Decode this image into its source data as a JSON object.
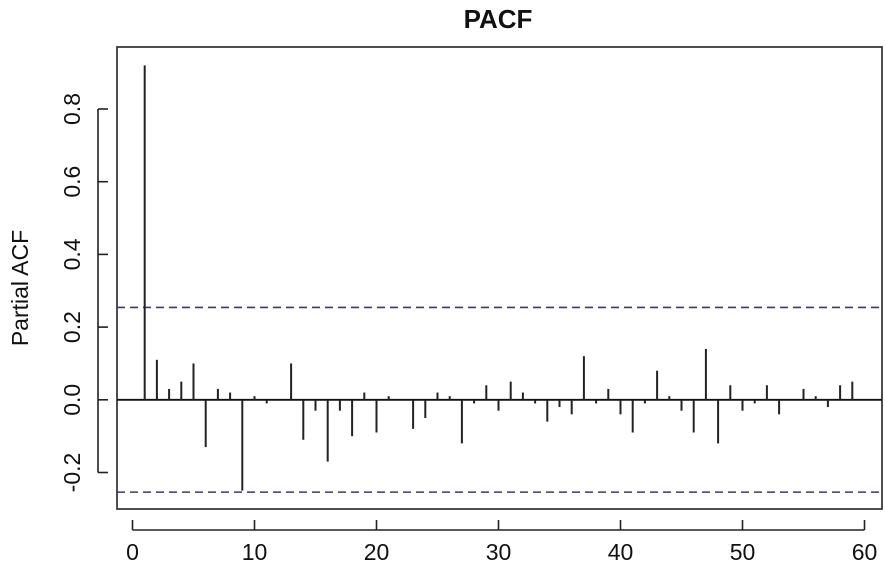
{
  "chart_data": {
    "type": "bar",
    "title": "PACF",
    "xlabel": "",
    "ylabel": "Partial ACF",
    "xlim": [
      -1,
      61
    ],
    "ylim": [
      -0.3,
      0.95
    ],
    "x_ticks": [
      0,
      10,
      20,
      30,
      40,
      50,
      60
    ],
    "x_tick_labels": [
      "0",
      "10",
      "20",
      "30",
      "40",
      "50",
      "60"
    ],
    "y_ticks": [
      -0.2,
      0.0,
      0.2,
      0.4,
      0.6,
      0.8
    ],
    "y_tick_labels": [
      "-0.2",
      "0.0",
      "0.2",
      "0.4",
      "0.6",
      "0.8"
    ],
    "confidence_bound": 0.254,
    "grid": false,
    "colors": {
      "bars": "#222222",
      "confidence_lines": "#3a3a70",
      "zero_line": "#111111"
    },
    "lags": [
      1,
      2,
      3,
      4,
      5,
      6,
      7,
      8,
      9,
      10,
      11,
      12,
      13,
      14,
      15,
      16,
      17,
      18,
      19,
      20,
      21,
      22,
      23,
      24,
      25,
      26,
      27,
      28,
      29,
      30,
      31,
      32,
      33,
      34,
      35,
      36,
      37,
      38,
      39,
      40,
      41,
      42,
      43,
      44,
      45,
      46,
      47,
      48,
      49,
      50,
      51,
      52,
      53,
      54,
      55,
      56,
      57,
      58,
      59
    ],
    "values": [
      0.92,
      0.11,
      0.03,
      0.05,
      0.1,
      -0.13,
      0.03,
      0.02,
      -0.25,
      0.01,
      -0.01,
      0.0,
      0.1,
      -0.11,
      -0.03,
      -0.17,
      -0.03,
      -0.1,
      0.02,
      -0.09,
      0.01,
      0.0,
      -0.08,
      -0.05,
      0.02,
      0.01,
      -0.12,
      -0.01,
      0.04,
      -0.03,
      0.05,
      0.02,
      -0.01,
      -0.06,
      -0.02,
      -0.04,
      0.12,
      -0.01,
      0.03,
      -0.04,
      -0.09,
      -0.01,
      0.08,
      0.01,
      -0.03,
      -0.09,
      0.14,
      -0.12,
      0.04,
      -0.03,
      -0.01,
      0.04,
      -0.04,
      0.0,
      0.03,
      0.01,
      -0.02,
      0.04,
      0.05
    ]
  }
}
